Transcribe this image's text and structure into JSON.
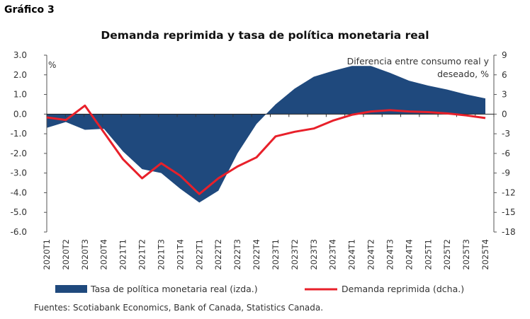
{
  "figure_label": "Gráfico 3",
  "source": "Fuentes: Scotiabank Economics, Bank of Canada, Statistics Canada.",
  "chart_data": {
    "type": "area+line",
    "title": "Demanda reprimida y tasa de política monetaria real",
    "left_axis_label": "%",
    "right_axis_label": [
      "Diferencia entre consumo real y",
      "deseado, %"
    ],
    "ylim_left": [
      -6,
      3
    ],
    "ylim_right": [
      -18,
      9
    ],
    "yticks_left": [
      "3.0",
      "2.0",
      "1.0",
      "0.0",
      "-1.0",
      "-2.0",
      "-3.0",
      "-4.0",
      "-5.0",
      "-6.0"
    ],
    "yticks_right": [
      "9",
      "6",
      "3",
      "0",
      "-3",
      "-6",
      "-9",
      "-12",
      "-15",
      "-18"
    ],
    "categories": [
      "2020T1",
      "2020T2",
      "2020T3",
      "2020T4",
      "2021T1",
      "2021T2",
      "2021T3",
      "2021T4",
      "2022T1",
      "2022T2",
      "2022T3",
      "2022T4",
      "2023T1",
      "2023T2",
      "2023T3",
      "2023T4",
      "2024T1",
      "2024T2",
      "2024T3",
      "2024T4",
      "2025T1",
      "2025T2",
      "2025T3",
      "2025T4"
    ],
    "series": [
      {
        "name": "Tasa de política monetaria real (izda.)",
        "type": "area",
        "axis": "left",
        "color": "#1f497d",
        "values": [
          -0.7,
          -0.4,
          -0.8,
          -0.75,
          -1.9,
          -2.8,
          -3.0,
          -3.8,
          -4.5,
          -3.9,
          -2.0,
          -0.5,
          0.5,
          1.3,
          1.9,
          2.2,
          2.45,
          2.45,
          2.1,
          1.7,
          1.45,
          1.25,
          1.0,
          0.8
        ]
      },
      {
        "name": "Demanda reprimida (dcha.)",
        "type": "line",
        "axis": "right",
        "color": "#e8202a",
        "values": [
          -0.5,
          -0.9,
          1.3,
          -2.8,
          -6.9,
          -9.8,
          -7.5,
          -9.4,
          -12.2,
          -9.8,
          -8.0,
          -6.6,
          -3.4,
          -2.7,
          -2.2,
          -1.0,
          -0.1,
          0.4,
          0.6,
          0.4,
          0.3,
          0.1,
          -0.2,
          -0.6
        ]
      }
    ],
    "legend_placement": "bottom",
    "grid": false
  }
}
